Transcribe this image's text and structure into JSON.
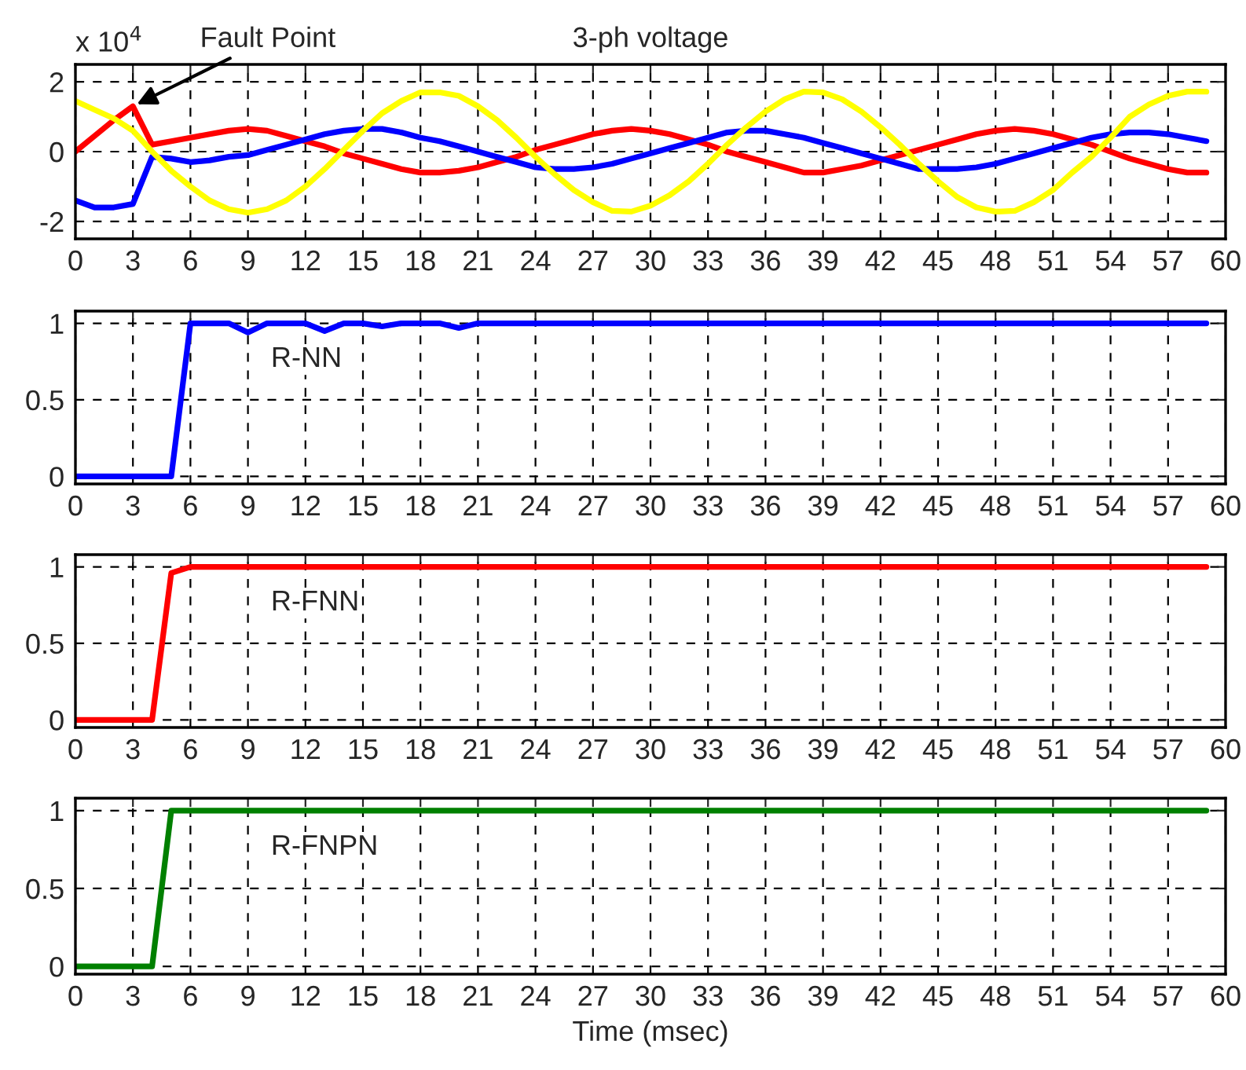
{
  "chart_data": [
    {
      "type": "line",
      "title": "3-ph voltage",
      "annotations": [
        "x 10$^{4}$",
        {
          "text": "Fault Point",
          "x": 3,
          "y": 1.3
        }
      ],
      "x": [
        0,
        1,
        2,
        3,
        4,
        5,
        6,
        7,
        8,
        9,
        10,
        11,
        12,
        13,
        14,
        15,
        16,
        17,
        18,
        19,
        20,
        21,
        22,
        23,
        24,
        25,
        26,
        27,
        28,
        29,
        30,
        31,
        32,
        33,
        34,
        35,
        36,
        37,
        38,
        39,
        40,
        41,
        42,
        43,
        44,
        45,
        46,
        47,
        48,
        49,
        50,
        51,
        52,
        53,
        54,
        55,
        56,
        57,
        58,
        59
      ],
      "series": [
        {
          "color": "#ff0000",
          "values": [
            0,
            0.45,
            0.9,
            1.3,
            0.2,
            0.3,
            0.4,
            0.5,
            0.6,
            0.65,
            0.6,
            0.45,
            0.3,
            0.15,
            -0.05,
            -0.2,
            -0.35,
            -0.5,
            -0.6,
            -0.6,
            -0.55,
            -0.45,
            -0.3,
            -0.15,
            0.05,
            0.2,
            0.35,
            0.5,
            0.6,
            0.65,
            0.6,
            0.5,
            0.35,
            0.2,
            0.0,
            -0.15,
            -0.3,
            -0.45,
            -0.6,
            -0.6,
            -0.5,
            -0.4,
            -0.25,
            -0.1,
            0.05,
            0.2,
            0.35,
            0.5,
            0.6,
            0.65,
            0.6,
            0.5,
            0.35,
            0.2,
            0.0,
            -0.2,
            -0.35,
            -0.5,
            -0.6,
            -0.6
          ]
        },
        {
          "color": "#0000ff",
          "values": [
            -1.4,
            -1.6,
            -1.6,
            -1.5,
            -0.15,
            -0.2,
            -0.3,
            -0.25,
            -0.15,
            -0.1,
            0.05,
            0.2,
            0.35,
            0.5,
            0.6,
            0.65,
            0.65,
            0.55,
            0.4,
            0.3,
            0.15,
            0.0,
            -0.15,
            -0.3,
            -0.45,
            -0.5,
            -0.5,
            -0.45,
            -0.35,
            -0.2,
            -0.05,
            0.1,
            0.25,
            0.4,
            0.55,
            0.6,
            0.6,
            0.5,
            0.4,
            0.25,
            0.1,
            -0.05,
            -0.2,
            -0.35,
            -0.5,
            -0.5,
            -0.5,
            -0.45,
            -0.35,
            -0.2,
            -0.05,
            0.1,
            0.25,
            0.4,
            0.5,
            0.55,
            0.55,
            0.5,
            0.4,
            0.3
          ]
        },
        {
          "color": "#ffff00",
          "values": [
            1.45,
            1.2,
            0.95,
            0.6,
            0,
            -0.55,
            -1.0,
            -1.4,
            -1.65,
            -1.75,
            -1.65,
            -1.4,
            -1.0,
            -0.5,
            0.05,
            0.6,
            1.1,
            1.45,
            1.7,
            1.7,
            1.6,
            1.3,
            0.9,
            0.4,
            -0.15,
            -0.65,
            -1.1,
            -1.45,
            -1.7,
            -1.72,
            -1.55,
            -1.25,
            -0.85,
            -0.35,
            0.2,
            0.7,
            1.15,
            1.5,
            1.72,
            1.7,
            1.5,
            1.15,
            0.7,
            0.2,
            -0.35,
            -0.85,
            -1.3,
            -1.6,
            -1.72,
            -1.7,
            -1.45,
            -1.1,
            -0.6,
            -0.15,
            0.4,
            1.0,
            1.35,
            1.6,
            1.72,
            1.72
          ]
        }
      ],
      "xlim": [
        0,
        60
      ],
      "xticks": [
        0,
        3,
        6,
        9,
        12,
        15,
        18,
        21,
        24,
        27,
        30,
        33,
        36,
        39,
        42,
        45,
        48,
        51,
        54,
        57,
        60
      ],
      "ylim": [
        -2.5,
        2.5
      ],
      "yticks": [
        -2,
        0,
        2
      ],
      "grid": true
    },
    {
      "type": "line",
      "annotations": [
        "R-NN"
      ],
      "x": [
        0,
        1,
        2,
        3,
        4,
        5,
        6,
        7,
        8,
        9,
        10,
        11,
        12,
        13,
        14,
        15,
        16,
        17,
        18,
        19,
        20,
        21,
        22,
        23,
        24,
        25,
        26,
        27,
        28,
        29,
        30,
        31,
        32,
        33,
        34,
        35,
        36,
        37,
        38,
        39,
        40,
        41,
        42,
        43,
        44,
        45,
        46,
        47,
        48,
        49,
        50,
        51,
        52,
        53,
        54,
        55,
        56,
        57,
        58,
        59
      ],
      "series": [
        {
          "color": "#0000ff",
          "values": [
            0,
            0,
            0,
            0,
            0,
            0,
            1,
            1,
            1,
            0.94,
            1,
            1,
            1,
            0.95,
            1,
            1,
            0.98,
            1,
            1,
            1,
            0.97,
            1,
            1,
            1,
            1,
            1,
            1,
            1,
            1,
            1,
            1,
            1,
            1,
            1,
            1,
            1,
            1,
            1,
            1,
            1,
            1,
            1,
            1,
            1,
            1,
            1,
            1,
            1,
            1,
            1,
            1,
            1,
            1,
            1,
            1,
            1,
            1,
            1,
            1,
            1
          ]
        }
      ],
      "xlim": [
        0,
        60
      ],
      "xticks": [
        0,
        3,
        6,
        9,
        12,
        15,
        18,
        21,
        24,
        27,
        30,
        33,
        36,
        39,
        42,
        45,
        48,
        51,
        54,
        57,
        60
      ],
      "ylim": [
        -0.05,
        1.08
      ],
      "yticks": [
        0,
        0.5,
        1
      ],
      "grid": true
    },
    {
      "type": "line",
      "annotations": [
        "R-FNN"
      ],
      "x": [
        0,
        1,
        2,
        3,
        4,
        5,
        6,
        7,
        8,
        9,
        10,
        11,
        12,
        13,
        14,
        15,
        16,
        17,
        18,
        19,
        20,
        21,
        22,
        23,
        24,
        25,
        26,
        27,
        28,
        29,
        30,
        31,
        32,
        33,
        34,
        35,
        36,
        37,
        38,
        39,
        40,
        41,
        42,
        43,
        44,
        45,
        46,
        47,
        48,
        49,
        50,
        51,
        52,
        53,
        54,
        55,
        56,
        57,
        58,
        59
      ],
      "series": [
        {
          "color": "#ff0000",
          "values": [
            0,
            0,
            0,
            0,
            0,
            0.96,
            1,
            1,
            1,
            1,
            1,
            1,
            1,
            1,
            1,
            1,
            1,
            1,
            1,
            1,
            1,
            1,
            1,
            1,
            1,
            1,
            1,
            1,
            1,
            1,
            1,
            1,
            1,
            1,
            1,
            1,
            1,
            1,
            1,
            1,
            1,
            1,
            1,
            1,
            1,
            1,
            1,
            1,
            1,
            1,
            1,
            1,
            1,
            1,
            1,
            1,
            1,
            1,
            1,
            1
          ]
        }
      ],
      "xlim": [
        0,
        60
      ],
      "xticks": [
        0,
        3,
        6,
        9,
        12,
        15,
        18,
        21,
        24,
        27,
        30,
        33,
        36,
        39,
        42,
        45,
        48,
        51,
        54,
        57,
        60
      ],
      "ylim": [
        -0.05,
        1.08
      ],
      "yticks": [
        0,
        0.5,
        1
      ],
      "grid": true
    },
    {
      "type": "line",
      "xlabel": "Time (msec)",
      "annotations": [
        "R-FNPN"
      ],
      "x": [
        0,
        1,
        2,
        3,
        4,
        5,
        6,
        7,
        8,
        9,
        10,
        11,
        12,
        13,
        14,
        15,
        16,
        17,
        18,
        19,
        20,
        21,
        22,
        23,
        24,
        25,
        26,
        27,
        28,
        29,
        30,
        31,
        32,
        33,
        34,
        35,
        36,
        37,
        38,
        39,
        40,
        41,
        42,
        43,
        44,
        45,
        46,
        47,
        48,
        49,
        50,
        51,
        52,
        53,
        54,
        55,
        56,
        57,
        58,
        59
      ],
      "series": [
        {
          "color": "#008000",
          "values": [
            0,
            0,
            0,
            0,
            0,
            1,
            1,
            1,
            1,
            1,
            1,
            1,
            1,
            1,
            1,
            1,
            1,
            1,
            1,
            1,
            1,
            1,
            1,
            1,
            1,
            1,
            1,
            1,
            1,
            1,
            1,
            1,
            1,
            1,
            1,
            1,
            1,
            1,
            1,
            1,
            1,
            1,
            1,
            1,
            1,
            1,
            1,
            1,
            1,
            1,
            1,
            1,
            1,
            1,
            1,
            1,
            1,
            1,
            1,
            1
          ]
        }
      ],
      "xlim": [
        0,
        60
      ],
      "xticks": [
        0,
        3,
        6,
        9,
        12,
        15,
        18,
        21,
        24,
        27,
        30,
        33,
        36,
        39,
        42,
        45,
        48,
        51,
        54,
        57,
        60
      ],
      "ylim": [
        -0.05,
        1.08
      ],
      "yticks": [
        0,
        0.5,
        1
      ],
      "grid": true
    }
  ]
}
